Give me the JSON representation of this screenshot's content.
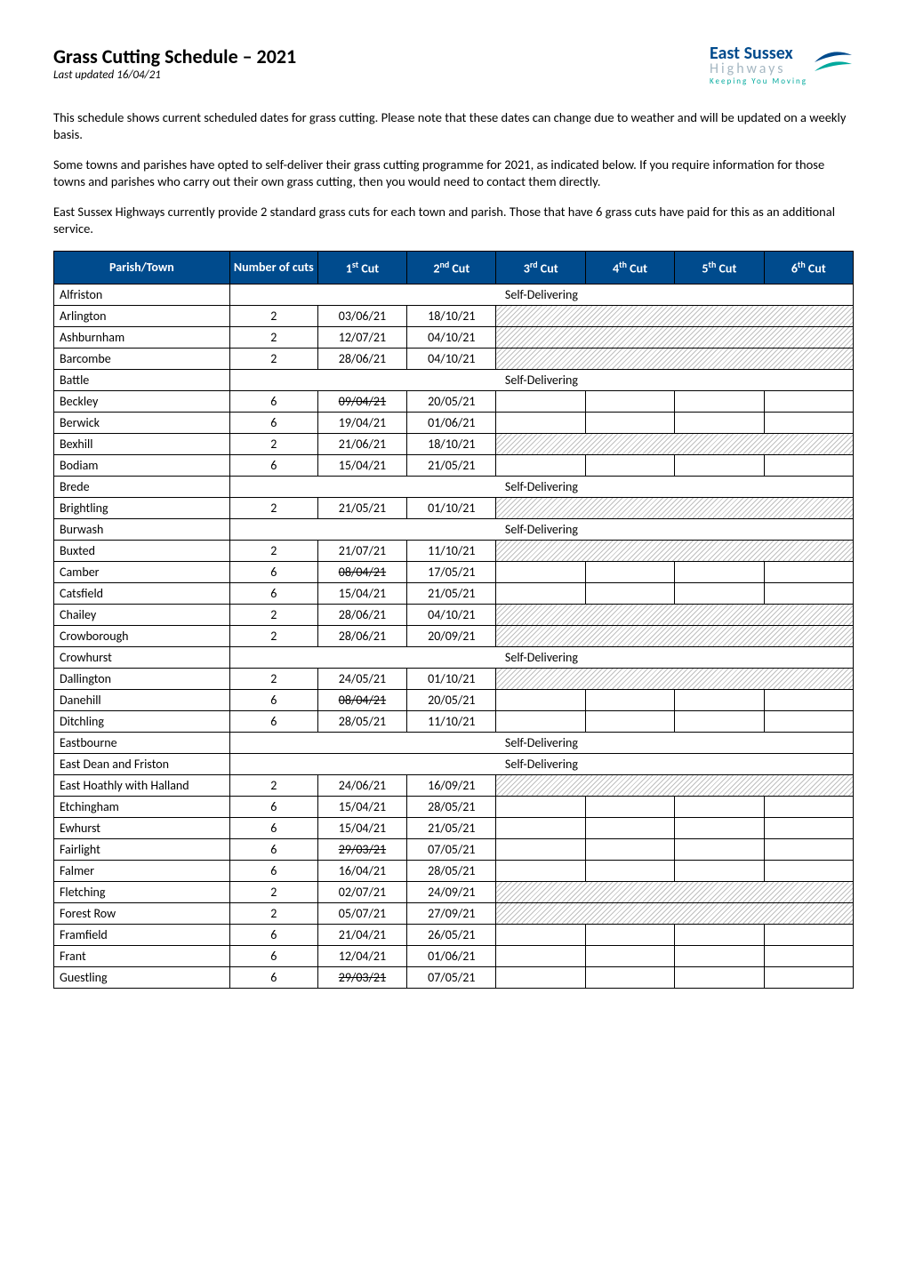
{
  "header": {
    "title": "Grass Cutting Schedule – 2021",
    "subtitle": "Last updated 16/04/21"
  },
  "logo": {
    "line1": "East Sussex",
    "line2": "Highways",
    "tagline": "Keeping You Moving",
    "brand_color": "#004b8d",
    "accent_color": "#00a99d",
    "secondary_color": "#a5b7c2"
  },
  "intro": {
    "p1": "This schedule shows current scheduled dates for grass cutting. Please note that these dates can change due to weather and will be updated on a weekly basis.",
    "p2": "Some towns and parishes have opted to self-deliver their grass cutting programme for 2021, as indicated below. If you require information for those towns and parishes who carry out their own grass cutting, then you would need to contact them directly.",
    "p3": "East Sussex Highways currently provide 2 standard grass cuts for each town and parish. Those that have 6 grass cuts have paid for this as an additional service."
  },
  "table": {
    "header_bg": "#004b8d",
    "header_fg": "#ffffff",
    "hatch_color": "#bfbfbf",
    "columns": {
      "parish": "Parish/Town",
      "number": "Number of cuts",
      "cut1_pre": "1",
      "cut1_sup": "st",
      "cut1_post": " Cut",
      "cut2_pre": "2",
      "cut2_sup": "nd",
      "cut2_post": " Cut",
      "cut3_pre": "3",
      "cut3_sup": "rd",
      "cut3_post": " Cut",
      "cut4_pre": "4",
      "cut4_sup": "th",
      "cut4_post": " Cut",
      "cut5_pre": "5",
      "cut5_sup": "th",
      "cut5_post": " Cut",
      "cut6_pre": "6",
      "cut6_sup": "th",
      "cut6_post": " Cut"
    },
    "self_delivering_label": "Self-Delivering",
    "rows": [
      {
        "parish": "Alfriston",
        "self": true
      },
      {
        "parish": "Arlington",
        "num": "2",
        "c1": "03/06/21",
        "c2": "18/10/21"
      },
      {
        "parish": "Ashburnham",
        "num": "2",
        "c1": "12/07/21",
        "c2": "04/10/21"
      },
      {
        "parish": "Barcombe",
        "num": "2",
        "c1": "28/06/21",
        "c2": "04/10/21"
      },
      {
        "parish": "Battle",
        "self": true
      },
      {
        "parish": "Beckley",
        "num": "6",
        "c1": "09/04/21",
        "c1_strike": true,
        "c2": "20/05/21",
        "open": true
      },
      {
        "parish": "Berwick",
        "num": "6",
        "c1": "19/04/21",
        "c2": "01/06/21",
        "open": true
      },
      {
        "parish": "Bexhill",
        "num": "2",
        "c1": "21/06/21",
        "c2": "18/10/21"
      },
      {
        "parish": "Bodiam",
        "num": "6",
        "c1": "15/04/21",
        "c2": "21/05/21",
        "open": true
      },
      {
        "parish": "Brede",
        "self": true
      },
      {
        "parish": "Brightling",
        "num": "2",
        "c1": "21/05/21",
        "c2": "01/10/21"
      },
      {
        "parish": "Burwash",
        "self": true
      },
      {
        "parish": "Buxted",
        "num": "2",
        "c1": "21/07/21",
        "c2": "11/10/21"
      },
      {
        "parish": "Camber",
        "num": "6",
        "c1": "08/04/21",
        "c1_strike": true,
        "c2": "17/05/21",
        "open": true
      },
      {
        "parish": "Catsfield",
        "num": "6",
        "c1": "15/04/21",
        "c2": "21/05/21",
        "open": true
      },
      {
        "parish": "Chailey",
        "num": "2",
        "c1": "28/06/21",
        "c2": "04/10/21"
      },
      {
        "parish": "Crowborough",
        "num": "2",
        "c1": "28/06/21",
        "c2": "20/09/21"
      },
      {
        "parish": "Crowhurst",
        "self": true
      },
      {
        "parish": "Dallington",
        "num": "2",
        "c1": "24/05/21",
        "c2": "01/10/21"
      },
      {
        "parish": "Danehill",
        "num": "6",
        "c1": "08/04/21",
        "c1_strike": true,
        "c2": "20/05/21",
        "open": true
      },
      {
        "parish": "Ditchling",
        "num": "6",
        "c1": "28/05/21",
        "c2": "11/10/21",
        "open": true
      },
      {
        "parish": "Eastbourne",
        "self": true
      },
      {
        "parish": "East Dean and Friston",
        "self": true
      },
      {
        "parish": "East Hoathly with Halland",
        "num": "2",
        "c1": "24/06/21",
        "c2": "16/09/21"
      },
      {
        "parish": "Etchingham",
        "num": "6",
        "c1": "15/04/21",
        "c2": "28/05/21",
        "open": true
      },
      {
        "parish": "Ewhurst",
        "num": "6",
        "c1": "15/04/21",
        "c2": "21/05/21",
        "open": true
      },
      {
        "parish": "Fairlight",
        "num": "6",
        "c1": "29/03/21",
        "c1_strike": true,
        "c2": "07/05/21",
        "open": true
      },
      {
        "parish": "Falmer",
        "num": "6",
        "c1": "16/04/21",
        "c2": "28/05/21",
        "open": true
      },
      {
        "parish": "Fletching",
        "num": "2",
        "c1": "02/07/21",
        "c2": "24/09/21"
      },
      {
        "parish": "Forest Row",
        "num": "2",
        "c1": "05/07/21",
        "c2": "27/09/21"
      },
      {
        "parish": "Framfield",
        "num": "6",
        "c1": "21/04/21",
        "c2": "26/05/21",
        "open": true
      },
      {
        "parish": "Frant",
        "num": "6",
        "c1": "12/04/21",
        "c2": "01/06/21",
        "open": true
      },
      {
        "parish": "Guestling",
        "num": "6",
        "c1": "29/03/21",
        "c1_strike": true,
        "c2": "07/05/21",
        "open": true
      }
    ]
  }
}
